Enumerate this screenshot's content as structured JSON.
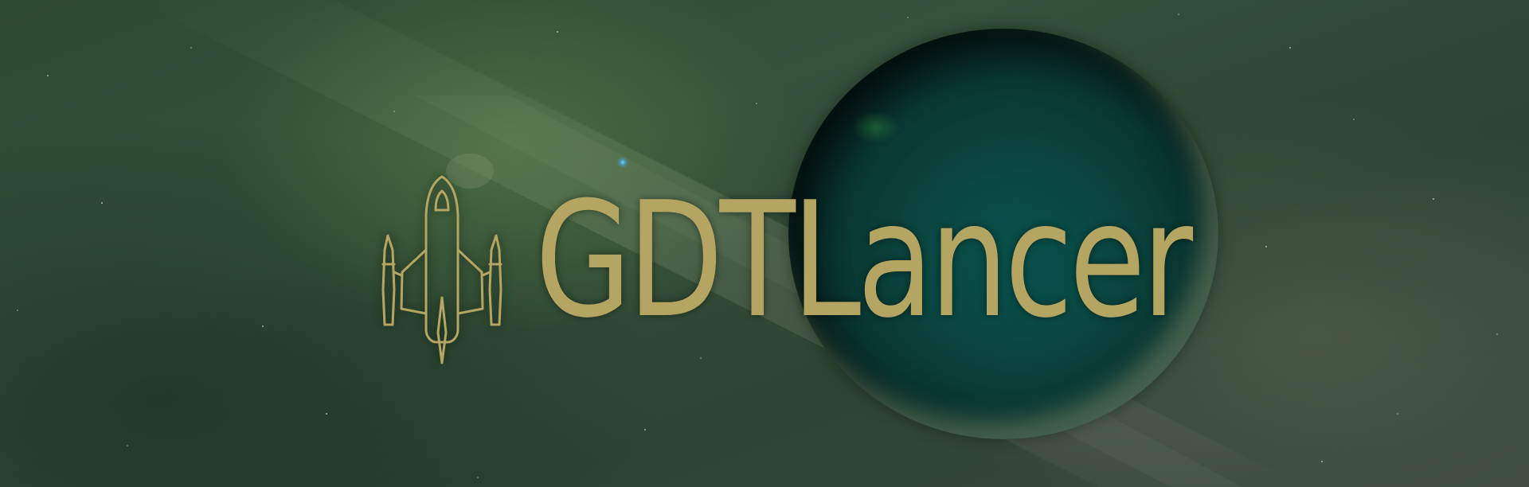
{
  "banner": {
    "title": "GDTLancer",
    "logo_icon": "spaceship-outline-icon",
    "accent_color": "#b5a563"
  },
  "background": {
    "theme": "space-nebula",
    "planet": "teal-planet",
    "colors": {
      "space": "#2f4a33",
      "planet": "#0a3b35"
    }
  }
}
